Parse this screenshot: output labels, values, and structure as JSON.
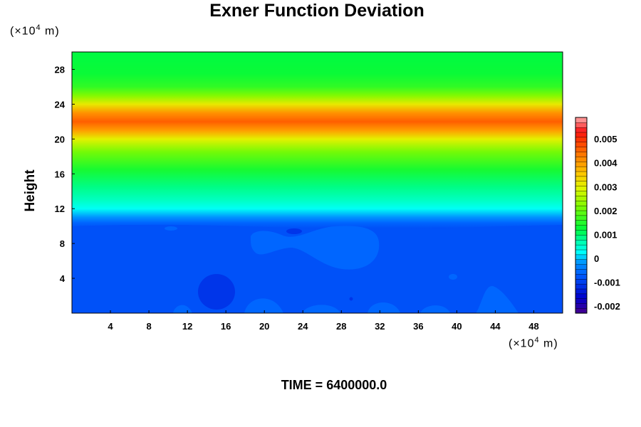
{
  "chart_data": {
    "type": "heatmap",
    "title": "Exner Function Deviation",
    "ylabel": "Height",
    "xlabel": "",
    "x_unit": {
      "prefix": "(×10",
      "exp": "4",
      "suffix": " m)"
    },
    "y_unit": {
      "prefix": "(×10",
      "exp": "4",
      "suffix": " m)"
    },
    "footer": "TIME = 6400000.0",
    "xlim": [
      0,
      51
    ],
    "ylim": [
      0,
      30
    ],
    "x_ticks": [
      "4",
      "8",
      "12",
      "16",
      "20",
      "24",
      "28",
      "32",
      "36",
      "40",
      "44",
      "48"
    ],
    "y_ticks": [
      "4",
      "8",
      "12",
      "16",
      "20",
      "24",
      "28"
    ],
    "colorbar": {
      "range": [
        -0.0023,
        0.0059
      ],
      "tick_labels": [
        "-0.002",
        "-0.001",
        "0",
        "0.001",
        "0.002",
        "0.003",
        "0.004",
        "0.005"
      ],
      "tick_values": [
        -0.002,
        -0.001,
        0,
        0.001,
        0.002,
        0.003,
        0.004,
        0.005
      ]
    },
    "vertical_profile": [
      {
        "height": 0,
        "value": -0.0008
      },
      {
        "height": 9.8,
        "value": -0.0008
      },
      {
        "height": 10.4,
        "value": -0.0006
      },
      {
        "height": 11.0,
        "value": -0.0002
      },
      {
        "height": 12.0,
        "value": 0.0003
      },
      {
        "height": 13.0,
        "value": 0.0006
      },
      {
        "height": 14.5,
        "value": 0.0009
      },
      {
        "height": 16.5,
        "value": 0.0014
      },
      {
        "height": 18.5,
        "value": 0.0021
      },
      {
        "height": 20.0,
        "value": 0.003
      },
      {
        "height": 21.0,
        "value": 0.004
      },
      {
        "height": 22.0,
        "value": 0.0046
      },
      {
        "height": 23.0,
        "value": 0.0041
      },
      {
        "height": 24.0,
        "value": 0.0031
      },
      {
        "height": 25.0,
        "value": 0.0022
      },
      {
        "height": 26.0,
        "value": 0.0016
      },
      {
        "height": 27.5,
        "value": 0.0013
      },
      {
        "height": 30.0,
        "value": 0.0012
      }
    ]
  }
}
